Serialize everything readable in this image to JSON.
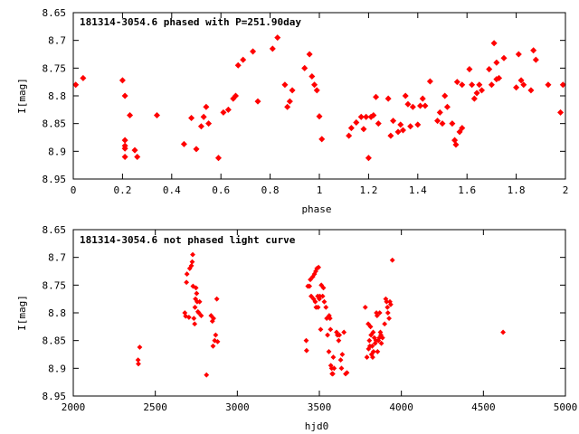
{
  "chart_data": [
    {
      "type": "scatter",
      "title": "181314-3054.6 phased with P=251.90day",
      "xlabel": "phase",
      "ylabel": "I[mag]",
      "xlim": [
        0,
        2
      ],
      "ylim": [
        8.95,
        8.65
      ],
      "y_inverted": true,
      "grid": false,
      "marker_color": "#ff0000",
      "x_ticks": [
        "0",
        "0.2",
        "0.4",
        "0.6",
        "0.8",
        "1",
        "1.2",
        "1.4",
        "1.6",
        "1.8",
        "2"
      ],
      "y_ticks": [
        "8.65",
        "8.7",
        "8.75",
        "8.8",
        "8.85",
        "8.9",
        "8.95"
      ],
      "series": [
        {
          "points": [
            [
              0.01,
              8.78
            ],
            [
              0.04,
              8.768
            ],
            [
              0.2,
              8.772
            ],
            [
              0.21,
              8.8
            ],
            [
              0.21,
              8.88
            ],
            [
              0.21,
              8.89
            ],
            [
              0.21,
              8.895
            ],
            [
              0.21,
              8.91
            ],
            [
              0.23,
              8.835
            ],
            [
              0.25,
              8.898
            ],
            [
              0.26,
              8.91
            ],
            [
              0.34,
              8.835
            ],
            [
              0.45,
              8.887
            ],
            [
              0.48,
              8.84
            ],
            [
              0.5,
              8.896
            ],
            [
              0.52,
              8.855
            ],
            [
              0.53,
              8.838
            ],
            [
              0.54,
              8.82
            ],
            [
              0.55,
              8.85
            ],
            [
              0.59,
              8.912
            ],
            [
              0.61,
              8.83
            ],
            [
              0.63,
              8.825
            ],
            [
              0.65,
              8.805
            ],
            [
              0.66,
              8.8
            ],
            [
              0.67,
              8.745
            ],
            [
              0.69,
              8.735
            ],
            [
              0.73,
              8.72
            ],
            [
              0.75,
              8.81
            ],
            [
              0.81,
              8.715
            ],
            [
              0.83,
              8.695
            ],
            [
              0.86,
              8.78
            ],
            [
              0.87,
              8.82
            ],
            [
              0.88,
              8.81
            ],
            [
              0.89,
              8.79
            ],
            [
              0.94,
              8.75
            ],
            [
              0.96,
              8.725
            ],
            [
              0.97,
              8.765
            ],
            [
              0.98,
              8.78
            ],
            [
              0.99,
              8.79
            ],
            [
              1.0,
              8.837
            ],
            [
              1.01,
              8.878
            ],
            [
              1.12,
              8.872
            ],
            [
              1.13,
              8.858
            ],
            [
              1.15,
              8.848
            ],
            [
              1.17,
              8.838
            ],
            [
              1.18,
              8.86
            ],
            [
              1.19,
              8.838
            ],
            [
              1.2,
              8.912
            ],
            [
              1.21,
              8.838
            ],
            [
              1.22,
              8.835
            ],
            [
              1.23,
              8.802
            ],
            [
              1.24,
              8.85
            ],
            [
              1.28,
              8.805
            ],
            [
              1.29,
              8.872
            ],
            [
              1.3,
              8.845
            ],
            [
              1.32,
              8.865
            ],
            [
              1.33,
              8.852
            ],
            [
              1.34,
              8.862
            ],
            [
              1.35,
              8.8
            ],
            [
              1.36,
              8.815
            ],
            [
              1.37,
              8.855
            ],
            [
              1.38,
              8.82
            ],
            [
              1.4,
              8.852
            ],
            [
              1.41,
              8.818
            ],
            [
              1.42,
              8.805
            ],
            [
              1.43,
              8.818
            ],
            [
              1.45,
              8.774
            ],
            [
              1.48,
              8.845
            ],
            [
              1.49,
              8.83
            ],
            [
              1.5,
              8.85
            ],
            [
              1.51,
              8.8
            ],
            [
              1.52,
              8.82
            ],
            [
              1.54,
              8.85
            ],
            [
              1.55,
              8.88
            ],
            [
              1.555,
              8.888
            ],
            [
              1.56,
              8.775
            ],
            [
              1.57,
              8.865
            ],
            [
              1.58,
              8.858
            ],
            [
              1.58,
              8.78
            ],
            [
              1.61,
              8.752
            ],
            [
              1.62,
              8.78
            ],
            [
              1.63,
              8.805
            ],
            [
              1.64,
              8.795
            ],
            [
              1.65,
              8.78
            ],
            [
              1.66,
              8.79
            ],
            [
              1.69,
              8.752
            ],
            [
              1.7,
              8.78
            ],
            [
              1.71,
              8.705
            ],
            [
              1.72,
              8.74
            ],
            [
              1.72,
              8.77
            ],
            [
              1.73,
              8.768
            ],
            [
              1.75,
              8.732
            ],
            [
              1.8,
              8.785
            ],
            [
              1.81,
              8.725
            ],
            [
              1.82,
              8.772
            ],
            [
              1.83,
              8.78
            ],
            [
              1.86,
              8.79
            ],
            [
              1.87,
              8.718
            ],
            [
              1.88,
              8.735
            ],
            [
              1.93,
              8.78
            ],
            [
              1.98,
              8.83
            ],
            [
              1.99,
              8.78
            ]
          ]
        }
      ]
    },
    {
      "type": "scatter",
      "title": "181314-3054.6 not phased light curve",
      "xlabel": "hjd0",
      "ylabel": "I[mag]",
      "xlim": [
        2000,
        5000
      ],
      "ylim": [
        8.95,
        8.65
      ],
      "y_inverted": true,
      "grid": false,
      "marker_color": "#ff0000",
      "x_ticks": [
        "2000",
        "2500",
        "3000",
        "3500",
        "4000",
        "4500",
        "5000"
      ],
      "y_ticks": [
        "8.65",
        "8.7",
        "8.75",
        "8.8",
        "8.85",
        "8.9",
        "8.95"
      ],
      "series": [
        {
          "points": [
            [
              2395,
              8.885
            ],
            [
              2397,
              8.892
            ],
            [
              2405,
              8.862
            ],
            [
              2680,
              8.8
            ],
            [
              2685,
              8.806
            ],
            [
              2690,
              8.745
            ],
            [
              2693,
              8.73
            ],
            [
              2705,
              8.808
            ],
            [
              2710,
              8.72
            ],
            [
              2720,
              8.715
            ],
            [
              2725,
              8.708
            ],
            [
              2728,
              8.695
            ],
            [
              2730,
              8.752
            ],
            [
              2735,
              8.81
            ],
            [
              2740,
              8.82
            ],
            [
              2742,
              8.79
            ],
            [
              2745,
              8.775
            ],
            [
              2748,
              8.755
            ],
            [
              2752,
              8.765
            ],
            [
              2755,
              8.78
            ],
            [
              2760,
              8.798
            ],
            [
              2765,
              8.8
            ],
            [
              2770,
              8.78
            ],
            [
              2780,
              8.805
            ],
            [
              2812,
              8.912
            ],
            [
              2840,
              8.805
            ],
            [
              2848,
              8.815
            ],
            [
              2852,
              8.86
            ],
            [
              2855,
              8.81
            ],
            [
              2862,
              8.85
            ],
            [
              2868,
              8.84
            ],
            [
              2875,
              8.775
            ],
            [
              2880,
              8.852
            ],
            [
              3420,
              8.85
            ],
            [
              3422,
              8.868
            ],
            [
              3430,
              8.752
            ],
            [
              3440,
              8.752
            ],
            [
              3445,
              8.74
            ],
            [
              3450,
              8.77
            ],
            [
              3460,
              8.735
            ],
            [
              3465,
              8.775
            ],
            [
              3470,
              8.73
            ],
            [
              3475,
              8.78
            ],
            [
              3478,
              8.725
            ],
            [
              3480,
              8.79
            ],
            [
              3485,
              8.72
            ],
            [
              3490,
              8.77
            ],
            [
              3492,
              8.79
            ],
            [
              3495,
              8.718
            ],
            [
              3500,
              8.775
            ],
            [
              3503,
              8.77
            ],
            [
              3508,
              8.83
            ],
            [
              3512,
              8.75
            ],
            [
              3520,
              8.77
            ],
            [
              3525,
              8.755
            ],
            [
              3530,
              8.78
            ],
            [
              3540,
              8.79
            ],
            [
              3545,
              8.81
            ],
            [
              3550,
              8.84
            ],
            [
              3558,
              8.87
            ],
            [
              3560,
              8.805
            ],
            [
              3565,
              8.81
            ],
            [
              3568,
              8.83
            ],
            [
              3570,
              8.895
            ],
            [
              3575,
              8.9
            ],
            [
              3578,
              8.91
            ],
            [
              3582,
              8.91
            ],
            [
              3585,
              8.88
            ],
            [
              3590,
              8.9
            ],
            [
              3605,
              8.835
            ],
            [
              3610,
              8.84
            ],
            [
              3618,
              8.85
            ],
            [
              3622,
              8.84
            ],
            [
              3630,
              8.885
            ],
            [
              3635,
              8.9
            ],
            [
              3640,
              8.875
            ],
            [
              3650,
              8.835
            ],
            [
              3660,
              8.91
            ],
            [
              3668,
              8.908
            ],
            [
              3780,
              8.79
            ],
            [
              3790,
              8.88
            ],
            [
              3798,
              8.82
            ],
            [
              3800,
              8.865
            ],
            [
              3805,
              8.85
            ],
            [
              3808,
              8.86
            ],
            [
              3812,
              8.825
            ],
            [
              3815,
              8.84
            ],
            [
              3818,
              8.875
            ],
            [
              3822,
              8.86
            ],
            [
              3825,
              8.88
            ],
            [
              3828,
              8.835
            ],
            [
              3830,
              8.87
            ],
            [
              3835,
              8.845
            ],
            [
              3840,
              8.855
            ],
            [
              3845,
              8.85
            ],
            [
              3848,
              8.8
            ],
            [
              3852,
              8.805
            ],
            [
              3855,
              8.87
            ],
            [
              3860,
              8.85
            ],
            [
              3865,
              8.845
            ],
            [
              3868,
              8.8
            ],
            [
              3872,
              8.835
            ],
            [
              3875,
              8.84
            ],
            [
              3878,
              8.855
            ],
            [
              3885,
              8.845
            ],
            [
              3898,
              8.82
            ],
            [
              3905,
              8.775
            ],
            [
              3910,
              8.78
            ],
            [
              3915,
              8.79
            ],
            [
              3918,
              8.8
            ],
            [
              3925,
              8.81
            ],
            [
              3930,
              8.78
            ],
            [
              3935,
              8.785
            ],
            [
              3945,
              8.705
            ],
            [
              4620,
              8.835
            ]
          ]
        }
      ]
    }
  ]
}
